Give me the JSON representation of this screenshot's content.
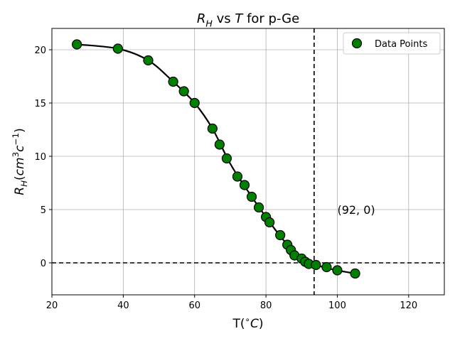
{
  "chart_data": {
    "type": "scatter",
    "title": "R_H vs T for p-Ge",
    "title_parts": [
      {
        "text": "R",
        "style": "italic"
      },
      {
        "text": "H",
        "style": "italic-sub"
      },
      {
        "text": " vs ",
        "style": "normal"
      },
      {
        "text": "T",
        "style": "italic"
      },
      {
        "text": " for p-Ge",
        "style": "normal"
      }
    ],
    "xlabel": "T(°C)",
    "xlabel_parts": [
      {
        "text": "T(",
        "style": "normal"
      },
      {
        "text": "∘",
        "style": "sup"
      },
      {
        "text": "C",
        "style": "italic"
      },
      {
        "text": ")",
        "style": "normal"
      }
    ],
    "ylabel": "R_H(cm^3c^-1)",
    "ylabel_parts": [
      {
        "text": "R",
        "style": "italic"
      },
      {
        "text": "H",
        "style": "italic-sub"
      },
      {
        "text": "(",
        "style": "normal"
      },
      {
        "text": "cm",
        "style": "italic"
      },
      {
        "text": "3",
        "style": "sup"
      },
      {
        "text": "c",
        "style": "italic"
      },
      {
        "text": "−1",
        "style": "sup"
      },
      {
        "text": ")",
        "style": "normal"
      }
    ],
    "xlim": [
      20,
      130
    ],
    "ylim": [
      -3,
      22
    ],
    "xticks": [
      20,
      40,
      60,
      80,
      100,
      120
    ],
    "yticks": [
      0,
      5,
      10,
      15,
      20
    ],
    "grid": true,
    "legend": {
      "position": "top-right",
      "entries": [
        "Data Points"
      ]
    },
    "series": [
      {
        "name": "Data Points",
        "marker_color": "#008000",
        "x": [
          27,
          38.5,
          47,
          54,
          57,
          60,
          65,
          67,
          69,
          72,
          74,
          76,
          78,
          80,
          81,
          84,
          86,
          87,
          88,
          90,
          91,
          92,
          94,
          97,
          100,
          105
        ],
        "y": [
          20.5,
          20.1,
          19.0,
          17.0,
          16.1,
          15.0,
          12.6,
          11.1,
          9.8,
          8.1,
          7.3,
          6.2,
          5.2,
          4.3,
          3.8,
          2.6,
          1.7,
          1.2,
          0.7,
          0.4,
          0.1,
          -0.1,
          -0.2,
          -0.4,
          -0.7,
          -1.0
        ]
      }
    ],
    "fit_curve": {
      "color": "#000000",
      "x": [
        27,
        38.5,
        47,
        54,
        60,
        65,
        70,
        75,
        80,
        85,
        90,
        95,
        100,
        105
      ],
      "y": [
        20.5,
        20.1,
        19.0,
        17.0,
        15.0,
        12.6,
        9.3,
        6.7,
        4.3,
        2.1,
        0.4,
        -0.3,
        -0.7,
        -1.0
      ]
    },
    "reference_lines": {
      "horizontal_y": 0,
      "vertical_x": 93.5,
      "style": "dashed",
      "color": "#000000"
    },
    "annotation": {
      "text": "(92, 0)",
      "x": 100,
      "y": 5
    }
  }
}
